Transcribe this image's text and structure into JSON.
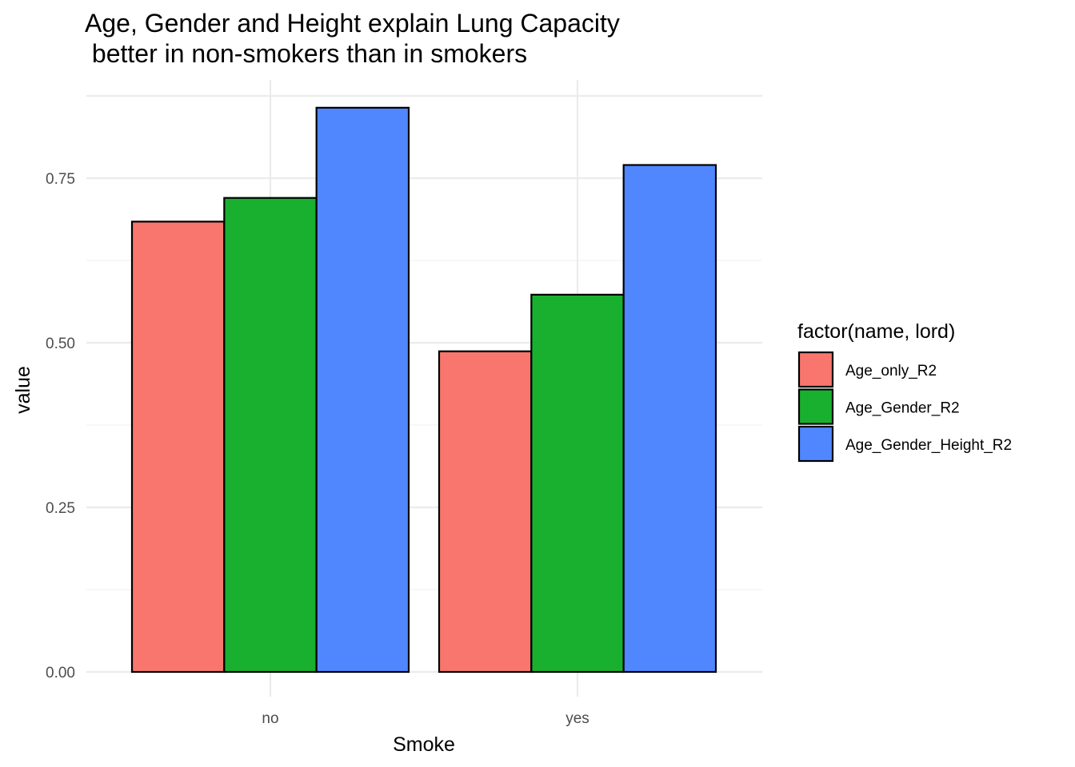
{
  "chart_data": {
    "type": "bar",
    "title": "Age, Gender and Height explain Lung Capacity\n better in non-smokers than in smokers",
    "xlabel": "Smoke",
    "ylabel": "value",
    "categories": [
      "no",
      "yes"
    ],
    "series": [
      {
        "name": "Age_only_R2",
        "values": [
          0.684,
          0.487
        ],
        "color": "#F8766D"
      },
      {
        "name": "Age_Gender_R2",
        "values": [
          0.72,
          0.573
        ],
        "color": "#1AB02F"
      },
      {
        "name": "Age_Gender_Height_R2",
        "values": [
          0.857,
          0.77
        ],
        "color": "#5087FF"
      }
    ],
    "ylim": [
      0,
      0.9
    ],
    "yticks": [
      "0.00",
      "0.25",
      "0.50",
      "0.75"
    ],
    "grid": true,
    "legend": {
      "title": "factor(name, lord)",
      "position": "right"
    }
  }
}
